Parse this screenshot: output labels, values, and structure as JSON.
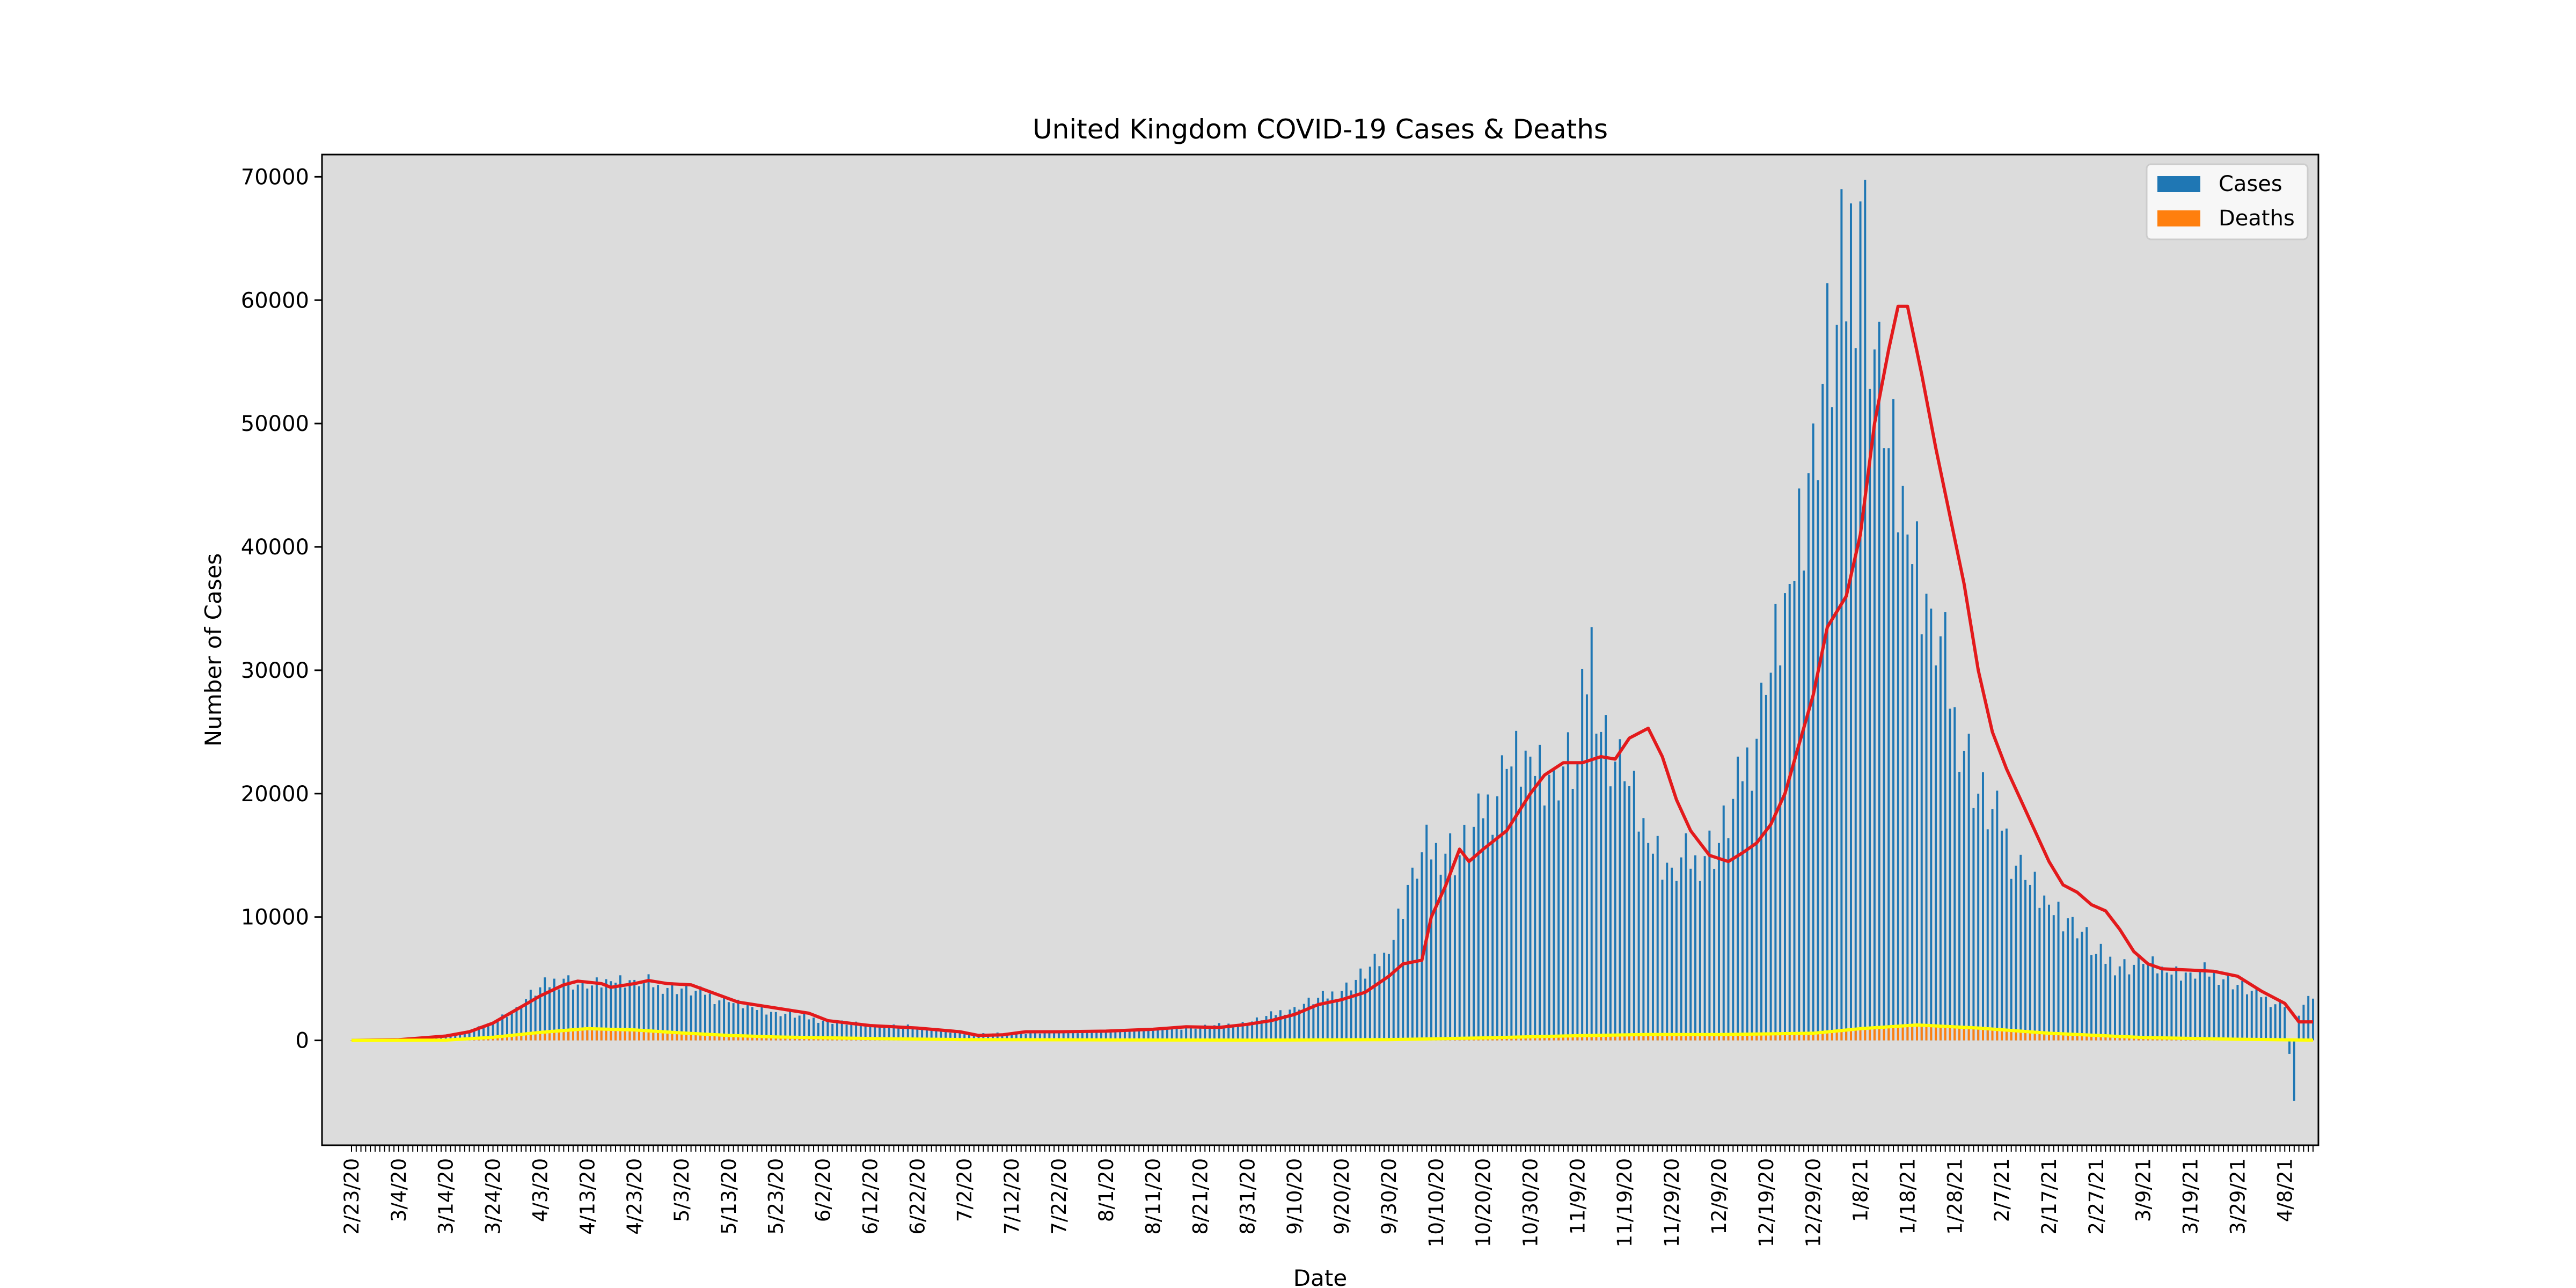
{
  "chart_data": {
    "type": "bar",
    "title": "United Kingdom COVID-19 Cases & Deaths",
    "xlabel": "Date",
    "ylabel": "Number of Cases",
    "ylim": [
      -8500,
      71800
    ],
    "yticks": [
      0,
      10000,
      20000,
      30000,
      40000,
      50000,
      60000,
      70000
    ],
    "grid": false,
    "legend_position": "top-right",
    "background_color": "#dcdcdc",
    "start_date": "2/23/20",
    "tick_every_days": 10,
    "xtick_labels": [
      "2/23/20",
      "3/4/20",
      "3/14/20",
      "3/24/20",
      "4/3/20",
      "4/13/20",
      "4/23/20",
      "5/3/20",
      "5/13/20",
      "5/23/20",
      "6/2/20",
      "6/12/20",
      "6/22/20",
      "7/2/20",
      "7/12/20",
      "7/22/20",
      "8/1/20",
      "8/11/20",
      "8/21/20",
      "8/31/20",
      "9/10/20",
      "9/20/20",
      "9/30/20",
      "10/10/20",
      "10/20/20",
      "10/30/20",
      "11/9/20",
      "11/19/20",
      "11/29/20",
      "12/9/20",
      "12/19/20",
      "12/29/20",
      "1/8/21",
      "1/18/21",
      "1/28/21",
      "2/7/21",
      "2/17/21",
      "2/27/21",
      "3/9/21",
      "3/19/21",
      "3/29/21",
      "4/8/21"
    ],
    "series": [
      {
        "name": "Cases",
        "kind": "bar",
        "color": "#1f77b4",
        "points": [
          [
            "2/23/20",
            0
          ],
          [
            "3/4/20",
            50
          ],
          [
            "3/14/20",
            350
          ],
          [
            "3/19/20",
            700
          ],
          [
            "3/24/20",
            1500
          ],
          [
            "3/29/20",
            2700
          ],
          [
            "4/3/20",
            4300
          ],
          [
            "4/8/20",
            5000
          ],
          [
            "4/13/20",
            4200
          ],
          [
            "4/18/20",
            4800
          ],
          [
            "4/23/20",
            4900
          ],
          [
            "4/28/20",
            4500
          ],
          [
            "5/3/20",
            4200
          ],
          [
            "5/8/20",
            3700
          ],
          [
            "5/13/20",
            3100
          ],
          [
            "5/18/20",
            2700
          ],
          [
            "5/23/20",
            2300
          ],
          [
            "6/2/20",
            1600
          ],
          [
            "6/12/20",
            1200
          ],
          [
            "6/22/20",
            1100
          ],
          [
            "7/2/20",
            500
          ],
          [
            "7/12/20",
            600
          ],
          [
            "7/22/20",
            650
          ],
          [
            "8/1/20",
            750
          ],
          [
            "8/11/20",
            900
          ],
          [
            "8/21/20",
            1100
          ],
          [
            "8/31/20",
            1400
          ],
          [
            "9/10/20",
            2700
          ],
          [
            "9/20/20",
            4000
          ],
          [
            "9/30/20",
            7000
          ],
          [
            "10/5/20",
            14000
          ],
          [
            "10/10/20",
            16000
          ],
          [
            "10/15/20",
            15000
          ],
          [
            "10/20/20",
            18000
          ],
          [
            "10/25/20",
            22000
          ],
          [
            "10/30/20",
            23000
          ],
          [
            "11/4/20",
            22000
          ],
          [
            "11/9/20",
            22500
          ],
          [
            "11/12/20",
            33500
          ],
          [
            "11/14/20",
            25000
          ],
          [
            "11/19/20",
            21000
          ],
          [
            "11/24/20",
            16000
          ],
          [
            "11/29/20",
            14000
          ],
          [
            "12/4/20",
            15000
          ],
          [
            "12/9/20",
            16000
          ],
          [
            "12/14/20",
            21000
          ],
          [
            "12/19/20",
            28000
          ],
          [
            "12/24/20",
            37000
          ],
          [
            "12/29/20",
            50000
          ],
          [
            "1/3/21",
            58000
          ],
          [
            "1/8/21",
            68000
          ],
          [
            "1/13/21",
            48000
          ],
          [
            "1/18/21",
            41000
          ],
          [
            "1/23/21",
            35000
          ],
          [
            "1/28/21",
            27000
          ],
          [
            "2/2/21",
            20000
          ],
          [
            "2/7/21",
            17000
          ],
          [
            "2/12/21",
            13000
          ],
          [
            "2/17/21",
            11000
          ],
          [
            "2/22/21",
            10000
          ],
          [
            "2/27/21",
            7000
          ],
          [
            "3/4/21",
            6000
          ],
          [
            "3/9/21",
            6200
          ],
          [
            "3/14/21",
            5500
          ],
          [
            "3/19/21",
            5500
          ],
          [
            "3/24/21",
            5500
          ],
          [
            "3/29/21",
            4500
          ],
          [
            "4/3/21",
            3500
          ],
          [
            "4/8/21",
            2700
          ],
          [
            "4/10/21",
            -4900
          ],
          [
            "4/11/21",
            2000
          ],
          [
            "4/13/21",
            3600
          ]
        ]
      },
      {
        "name": "Deaths",
        "kind": "bar",
        "color": "#ff7f0e",
        "points": [
          [
            "2/23/20",
            0
          ],
          [
            "3/14/20",
            20
          ],
          [
            "3/24/20",
            300
          ],
          [
            "4/3/20",
            700
          ],
          [
            "4/10/20",
            980
          ],
          [
            "4/23/20",
            850
          ],
          [
            "5/3/20",
            600
          ],
          [
            "5/23/20",
            300
          ],
          [
            "6/12/20",
            150
          ],
          [
            "7/2/20",
            60
          ],
          [
            "8/1/20",
            40
          ],
          [
            "9/1/20",
            20
          ],
          [
            "9/30/20",
            60
          ],
          [
            "10/20/20",
            200
          ],
          [
            "11/9/20",
            400
          ],
          [
            "11/24/20",
            500
          ],
          [
            "12/9/20",
            480
          ],
          [
            "12/29/20",
            600
          ],
          [
            "1/8/21",
            1000
          ],
          [
            "1/20/21",
            1250
          ],
          [
            "2/2/21",
            1000
          ],
          [
            "2/17/21",
            600
          ],
          [
            "3/9/21",
            250
          ],
          [
            "3/29/21",
            100
          ],
          [
            "4/13/21",
            30
          ]
        ]
      }
    ],
    "lines": [
      {
        "name": "cases-rolling-average",
        "color": "#e31a1c",
        "points": [
          [
            "2/23/20",
            0
          ],
          [
            "3/4/20",
            50
          ],
          [
            "3/14/20",
            350
          ],
          [
            "3/19/20",
            700
          ],
          [
            "3/24/20",
            1400
          ],
          [
            "3/29/20",
            2500
          ],
          [
            "4/3/20",
            3600
          ],
          [
            "4/8/20",
            4500
          ],
          [
            "4/11/20",
            4800
          ],
          [
            "4/16/20",
            4600
          ],
          [
            "4/18/20",
            4300
          ],
          [
            "4/23/20",
            4600
          ],
          [
            "4/26/20",
            4850
          ],
          [
            "4/30/20",
            4600
          ],
          [
            "5/5/20",
            4500
          ],
          [
            "5/10/20",
            3800
          ],
          [
            "5/15/20",
            3100
          ],
          [
            "5/20/20",
            2800
          ],
          [
            "5/25/20",
            2500
          ],
          [
            "5/30/20",
            2200
          ],
          [
            "6/3/20",
            1600
          ],
          [
            "6/12/20",
            1200
          ],
          [
            "6/22/20",
            1000
          ],
          [
            "7/1/20",
            700
          ],
          [
            "7/5/20",
            400
          ],
          [
            "7/10/20",
            450
          ],
          [
            "7/15/20",
            700
          ],
          [
            "7/22/20",
            700
          ],
          [
            "8/1/20",
            750
          ],
          [
            "8/11/20",
            900
          ],
          [
            "8/18/20",
            1100
          ],
          [
            "8/25/20",
            1050
          ],
          [
            "8/31/20",
            1300
          ],
          [
            "9/5/20",
            1600
          ],
          [
            "9/10/20",
            2100
          ],
          [
            "9/15/20",
            2900
          ],
          [
            "9/20/20",
            3300
          ],
          [
            "9/25/20",
            3900
          ],
          [
            "9/30/20",
            5200
          ],
          [
            "10/3/20",
            6200
          ],
          [
            "10/7/20",
            6500
          ],
          [
            "10/9/20",
            10000
          ],
          [
            "10/12/20",
            12500
          ],
          [
            "10/15/20",
            15500
          ],
          [
            "10/17/20",
            14500
          ],
          [
            "10/20/20",
            15500
          ],
          [
            "10/25/20",
            17000
          ],
          [
            "10/30/20",
            20000
          ],
          [
            "11/2/20",
            21500
          ],
          [
            "11/6/20",
            22500
          ],
          [
            "11/10/20",
            22500
          ],
          [
            "11/14/20",
            23000
          ],
          [
            "11/17/20",
            22800
          ],
          [
            "11/20/20",
            24500
          ],
          [
            "11/24/20",
            25300
          ],
          [
            "11/27/20",
            23000
          ],
          [
            "11/30/20",
            19500
          ],
          [
            "12/3/20",
            17000
          ],
          [
            "12/7/20",
            15000
          ],
          [
            "12/11/20",
            14500
          ],
          [
            "12/14/20",
            15200
          ],
          [
            "12/17/20",
            16000
          ],
          [
            "12/20/20",
            17500
          ],
          [
            "12/23/20",
            20000
          ],
          [
            "12/26/20",
            24000
          ],
          [
            "12/29/20",
            28000
          ],
          [
            "1/1/21",
            33500
          ],
          [
            "1/5/21",
            36000
          ],
          [
            "1/8/21",
            41000
          ],
          [
            "1/11/21",
            50000
          ],
          [
            "1/14/21",
            56000
          ],
          [
            "1/16/21",
            59500
          ],
          [
            "1/18/21",
            59500
          ],
          [
            "1/21/21",
            54000
          ],
          [
            "1/24/21",
            48000
          ],
          [
            "1/27/21",
            42500
          ],
          [
            "1/30/21",
            37000
          ],
          [
            "2/2/21",
            30000
          ],
          [
            "2/5/21",
            25000
          ],
          [
            "2/8/21",
            22000
          ],
          [
            "2/11/21",
            19500
          ],
          [
            "2/14/21",
            17000
          ],
          [
            "2/17/21",
            14500
          ],
          [
            "2/20/21",
            12600
          ],
          [
            "2/23/21",
            12000
          ],
          [
            "2/26/21",
            11000
          ],
          [
            "3/1/21",
            10500
          ],
          [
            "3/4/21",
            9000
          ],
          [
            "3/7/21",
            7200
          ],
          [
            "3/10/21",
            6200
          ],
          [
            "3/13/21",
            5800
          ],
          [
            "3/19/21",
            5700
          ],
          [
            "3/24/21",
            5600
          ],
          [
            "3/29/21",
            5200
          ],
          [
            "4/3/21",
            4000
          ],
          [
            "4/8/21",
            3000
          ],
          [
            "4/11/21",
            1500
          ],
          [
            "4/14/21",
            1500
          ]
        ]
      },
      {
        "name": "deaths-rolling-average",
        "color": "#ffff00",
        "points": [
          [
            "2/23/20",
            0
          ],
          [
            "3/14/20",
            20
          ],
          [
            "3/24/20",
            250
          ],
          [
            "4/3/20",
            650
          ],
          [
            "4/13/20",
            950
          ],
          [
            "4/23/20",
            850
          ],
          [
            "5/3/20",
            600
          ],
          [
            "5/13/20",
            400
          ],
          [
            "5/23/20",
            280
          ],
          [
            "6/12/20",
            150
          ],
          [
            "7/2/20",
            60
          ],
          [
            "8/1/20",
            40
          ],
          [
            "9/1/20",
            20
          ],
          [
            "9/30/20",
            60
          ],
          [
            "10/20/20",
            200
          ],
          [
            "11/9/20",
            380
          ],
          [
            "11/24/20",
            480
          ],
          [
            "12/9/20",
            470
          ],
          [
            "12/29/20",
            580
          ],
          [
            "1/8/21",
            950
          ],
          [
            "1/20/21",
            1250
          ],
          [
            "2/2/21",
            1000
          ],
          [
            "2/17/21",
            580
          ],
          [
            "3/9/21",
            230
          ],
          [
            "3/29/21",
            90
          ],
          [
            "4/14/21",
            20
          ]
        ]
      }
    ],
    "legend": [
      "Cases",
      "Deaths"
    ]
  }
}
